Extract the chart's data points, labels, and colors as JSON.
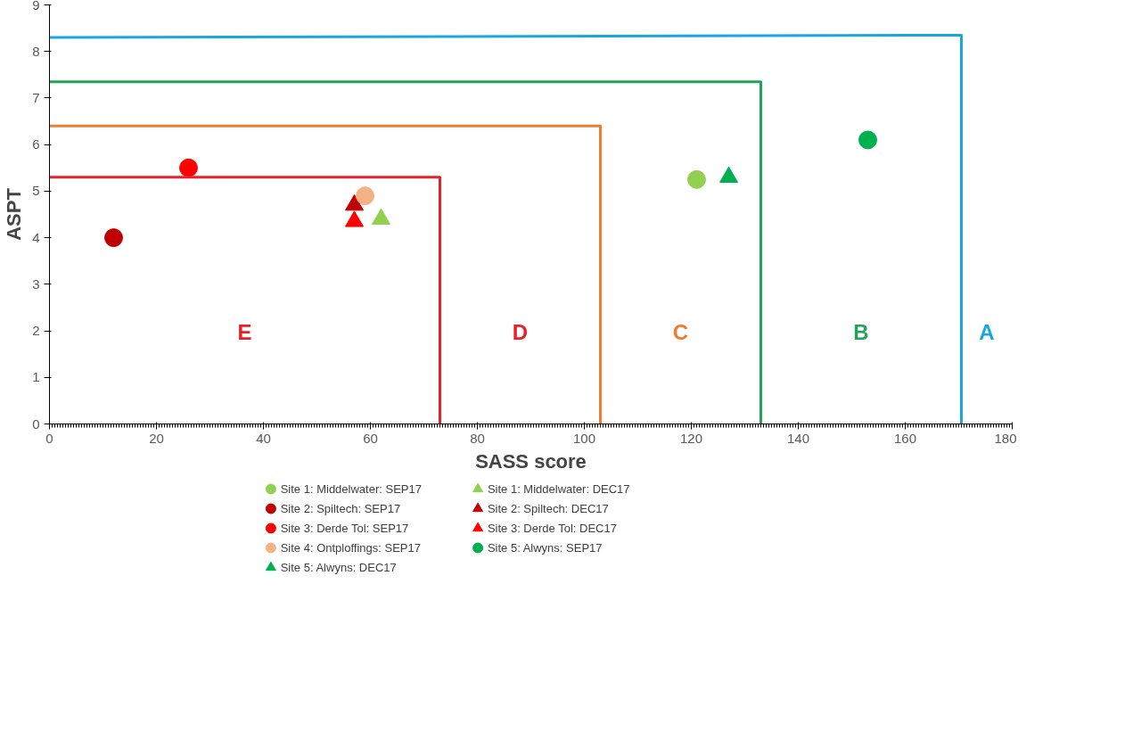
{
  "chart_data": {
    "type": "scatter",
    "xlabel": "SASS score",
    "ylabel": "ASPT",
    "xlim": [
      0,
      180
    ],
    "ylim": [
      0,
      9
    ],
    "xticks": [
      0,
      20,
      40,
      60,
      80,
      100,
      120,
      140,
      160,
      180
    ],
    "yticks": [
      0,
      1,
      2,
      3,
      4,
      5,
      6,
      7,
      8,
      9
    ],
    "grid": false,
    "legend": "bottom",
    "series": [
      {
        "name": "Site 1: Middelwater: SEP17",
        "color": "#92d050",
        "marker": "circle",
        "x": [
          121
        ],
        "values": [
          5.25
        ]
      },
      {
        "name": "Site 1: Middelwater: DEC17",
        "color": "#92d050",
        "marker": "triangle",
        "x": [
          62
        ],
        "values": [
          4.4
        ]
      },
      {
        "name": "Site 2: Spiltech: SEP17",
        "color": "#c00000",
        "marker": "circle",
        "x": [
          12
        ],
        "values": [
          4.0
        ]
      },
      {
        "name": "Site 2: Spiltech: DEC17",
        "color": "#c00000",
        "marker": "triangle",
        "x": [
          57
        ],
        "values": [
          4.7
        ]
      },
      {
        "name": "Site 3: Derde Tol: SEP17",
        "color": "#ff0000",
        "marker": "circle",
        "x": [
          26
        ],
        "values": [
          5.5
        ]
      },
      {
        "name": "Site 3: Derde Tol: DEC17",
        "color": "#ff0000",
        "marker": "triangle",
        "x": [
          57
        ],
        "values": [
          4.35
        ]
      },
      {
        "name": "Site 4: Ontploffings: SEP17",
        "color": "#f4b183",
        "marker": "circle",
        "x": [
          59
        ],
        "values": [
          4.9
        ]
      },
      {
        "name": "Site 5: Alwyns: SEP17",
        "color": "#00b050",
        "marker": "circle",
        "x": [
          153
        ],
        "values": [
          6.1
        ]
      },
      {
        "name": "Site 5: Alwyns: DEC17",
        "color": "#00b050",
        "marker": "triangle",
        "x": [
          127
        ],
        "values": [
          5.3
        ]
      },
      {
        "type": "line",
        "color": "#e8202a",
        "marker": "none",
        "x": [
          0,
          73,
          73
        ],
        "values": [
          5.3,
          5.3,
          0
        ]
      },
      {
        "type": "line",
        "color": "#ed7d31",
        "marker": "none",
        "x": [
          0,
          103,
          103
        ],
        "values": [
          6.4,
          6.4,
          0
        ]
      },
      {
        "type": "line",
        "color": "#21a35a",
        "marker": "none",
        "x": [
          0,
          133,
          133
        ],
        "values": [
          7.35,
          7.35,
          0
        ]
      },
      {
        "type": "line",
        "color": "#1aa7e0",
        "marker": "none",
        "x": [
          0,
          170.5,
          170.5
        ],
        "values": [
          8.3,
          8.35,
          0
        ]
      }
    ],
    "annotations": [
      "E",
      "D",
      "C",
      "B",
      "A"
    ]
  }
}
